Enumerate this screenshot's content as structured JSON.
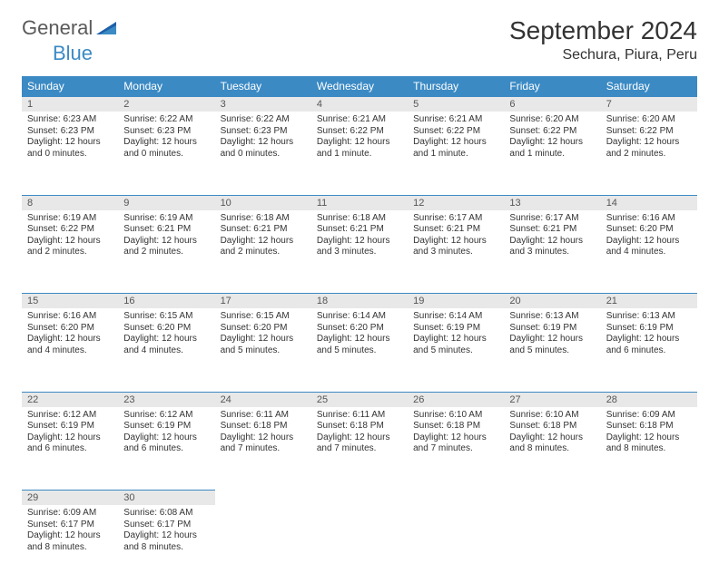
{
  "brand": {
    "part1": "General",
    "part2": "Blue"
  },
  "title": "September 2024",
  "location": "Sechura, Piura, Peru",
  "colors": {
    "accent": "#3b8ac4",
    "header_bg": "#3b8ac4",
    "header_text": "#ffffff",
    "daynum_bg": "#e8e8e8",
    "daynum_text": "#555555",
    "body_text": "#333333",
    "logo_gray": "#5a5a5a",
    "page_bg": "#ffffff"
  },
  "typography": {
    "month_title_fontsize": 28,
    "location_fontsize": 16,
    "day_header_fontsize": 12,
    "daynum_fontsize": 11,
    "cell_fontsize": 10,
    "logo_fontsize": 22
  },
  "day_headers": [
    "Sunday",
    "Monday",
    "Tuesday",
    "Wednesday",
    "Thursday",
    "Friday",
    "Saturday"
  ],
  "weeks": [
    [
      {
        "n": "1",
        "sunrise": "6:23 AM",
        "sunset": "6:23 PM",
        "daylight": "12 hours and 0 minutes."
      },
      {
        "n": "2",
        "sunrise": "6:22 AM",
        "sunset": "6:23 PM",
        "daylight": "12 hours and 0 minutes."
      },
      {
        "n": "3",
        "sunrise": "6:22 AM",
        "sunset": "6:23 PM",
        "daylight": "12 hours and 0 minutes."
      },
      {
        "n": "4",
        "sunrise": "6:21 AM",
        "sunset": "6:22 PM",
        "daylight": "12 hours and 1 minute."
      },
      {
        "n": "5",
        "sunrise": "6:21 AM",
        "sunset": "6:22 PM",
        "daylight": "12 hours and 1 minute."
      },
      {
        "n": "6",
        "sunrise": "6:20 AM",
        "sunset": "6:22 PM",
        "daylight": "12 hours and 1 minute."
      },
      {
        "n": "7",
        "sunrise": "6:20 AM",
        "sunset": "6:22 PM",
        "daylight": "12 hours and 2 minutes."
      }
    ],
    [
      {
        "n": "8",
        "sunrise": "6:19 AM",
        "sunset": "6:22 PM",
        "daylight": "12 hours and 2 minutes."
      },
      {
        "n": "9",
        "sunrise": "6:19 AM",
        "sunset": "6:21 PM",
        "daylight": "12 hours and 2 minutes."
      },
      {
        "n": "10",
        "sunrise": "6:18 AM",
        "sunset": "6:21 PM",
        "daylight": "12 hours and 2 minutes."
      },
      {
        "n": "11",
        "sunrise": "6:18 AM",
        "sunset": "6:21 PM",
        "daylight": "12 hours and 3 minutes."
      },
      {
        "n": "12",
        "sunrise": "6:17 AM",
        "sunset": "6:21 PM",
        "daylight": "12 hours and 3 minutes."
      },
      {
        "n": "13",
        "sunrise": "6:17 AM",
        "sunset": "6:21 PM",
        "daylight": "12 hours and 3 minutes."
      },
      {
        "n": "14",
        "sunrise": "6:16 AM",
        "sunset": "6:20 PM",
        "daylight": "12 hours and 4 minutes."
      }
    ],
    [
      {
        "n": "15",
        "sunrise": "6:16 AM",
        "sunset": "6:20 PM",
        "daylight": "12 hours and 4 minutes."
      },
      {
        "n": "16",
        "sunrise": "6:15 AM",
        "sunset": "6:20 PM",
        "daylight": "12 hours and 4 minutes."
      },
      {
        "n": "17",
        "sunrise": "6:15 AM",
        "sunset": "6:20 PM",
        "daylight": "12 hours and 5 minutes."
      },
      {
        "n": "18",
        "sunrise": "6:14 AM",
        "sunset": "6:20 PM",
        "daylight": "12 hours and 5 minutes."
      },
      {
        "n": "19",
        "sunrise": "6:14 AM",
        "sunset": "6:19 PM",
        "daylight": "12 hours and 5 minutes."
      },
      {
        "n": "20",
        "sunrise": "6:13 AM",
        "sunset": "6:19 PM",
        "daylight": "12 hours and 5 minutes."
      },
      {
        "n": "21",
        "sunrise": "6:13 AM",
        "sunset": "6:19 PM",
        "daylight": "12 hours and 6 minutes."
      }
    ],
    [
      {
        "n": "22",
        "sunrise": "6:12 AM",
        "sunset": "6:19 PM",
        "daylight": "12 hours and 6 minutes."
      },
      {
        "n": "23",
        "sunrise": "6:12 AM",
        "sunset": "6:19 PM",
        "daylight": "12 hours and 6 minutes."
      },
      {
        "n": "24",
        "sunrise": "6:11 AM",
        "sunset": "6:18 PM",
        "daylight": "12 hours and 7 minutes."
      },
      {
        "n": "25",
        "sunrise": "6:11 AM",
        "sunset": "6:18 PM",
        "daylight": "12 hours and 7 minutes."
      },
      {
        "n": "26",
        "sunrise": "6:10 AM",
        "sunset": "6:18 PM",
        "daylight": "12 hours and 7 minutes."
      },
      {
        "n": "27",
        "sunrise": "6:10 AM",
        "sunset": "6:18 PM",
        "daylight": "12 hours and 8 minutes."
      },
      {
        "n": "28",
        "sunrise": "6:09 AM",
        "sunset": "6:18 PM",
        "daylight": "12 hours and 8 minutes."
      }
    ],
    [
      {
        "n": "29",
        "sunrise": "6:09 AM",
        "sunset": "6:17 PM",
        "daylight": "12 hours and 8 minutes."
      },
      {
        "n": "30",
        "sunrise": "6:08 AM",
        "sunset": "6:17 PM",
        "daylight": "12 hours and 8 minutes."
      },
      null,
      null,
      null,
      null,
      null
    ]
  ],
  "labels": {
    "sunrise": "Sunrise:",
    "sunset": "Sunset:",
    "daylight": "Daylight:"
  }
}
